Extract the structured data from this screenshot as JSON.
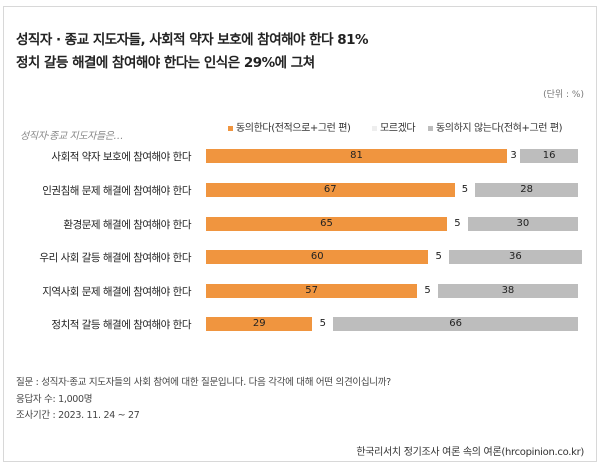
{
  "title_line1": "성직자 · 종교 지도자들, 사회적 약자 보호에 참여해야 한다 81%",
  "title_line2": "정치 갈등 해결에 참여해야 한다는 인식은 29%에 그쳐",
  "unit": "(단위 : %)",
  "subtitle": "성직자·종교 지도자들은…",
  "colors": {
    "agree": "#f0953f",
    "unsure": "#ffffff",
    "disagree": "#bdbdbd"
  },
  "chart_data": {
    "type": "bar",
    "stacked": true,
    "orientation": "horizontal",
    "categories": [
      "사회적 약자 보호에 참여해야 한다",
      "인권침해 문제 해결에 참여해야 한다",
      "환경문제 해결에 참여해야 한다",
      "우리 사회 갈등 해결에 참여해야 한다",
      "지역사회 문제 해결에 참여해야 한다",
      "정치적 갈등 해결에 참여해야 한다"
    ],
    "series": [
      {
        "name": "동의한다(전적으로+그런 편)",
        "values": [
          81,
          67,
          65,
          60,
          57,
          29
        ]
      },
      {
        "name": "모르겠다",
        "values": [
          3,
          5,
          5,
          5,
          5,
          5
        ]
      },
      {
        "name": "동의하지 않는다(전혀+그런 편)",
        "values": [
          16,
          28,
          30,
          36,
          38,
          66
        ]
      }
    ],
    "legend_position": "top-right",
    "xlim": [
      0,
      100
    ]
  },
  "footer": {
    "question": "질문 : 성직자·종교 지도자들의 사회 참여에 대한 질문입니다. 다음 각각에 대해 어떤 의견이십니까?",
    "respondents": "응답자 수: 1,000명",
    "period": "조사기간 : 2023. 11. 24 ~ 27",
    "source": "한국리서치 정기조사 여론 속의 여론(hrcopinion.co.kr)"
  }
}
